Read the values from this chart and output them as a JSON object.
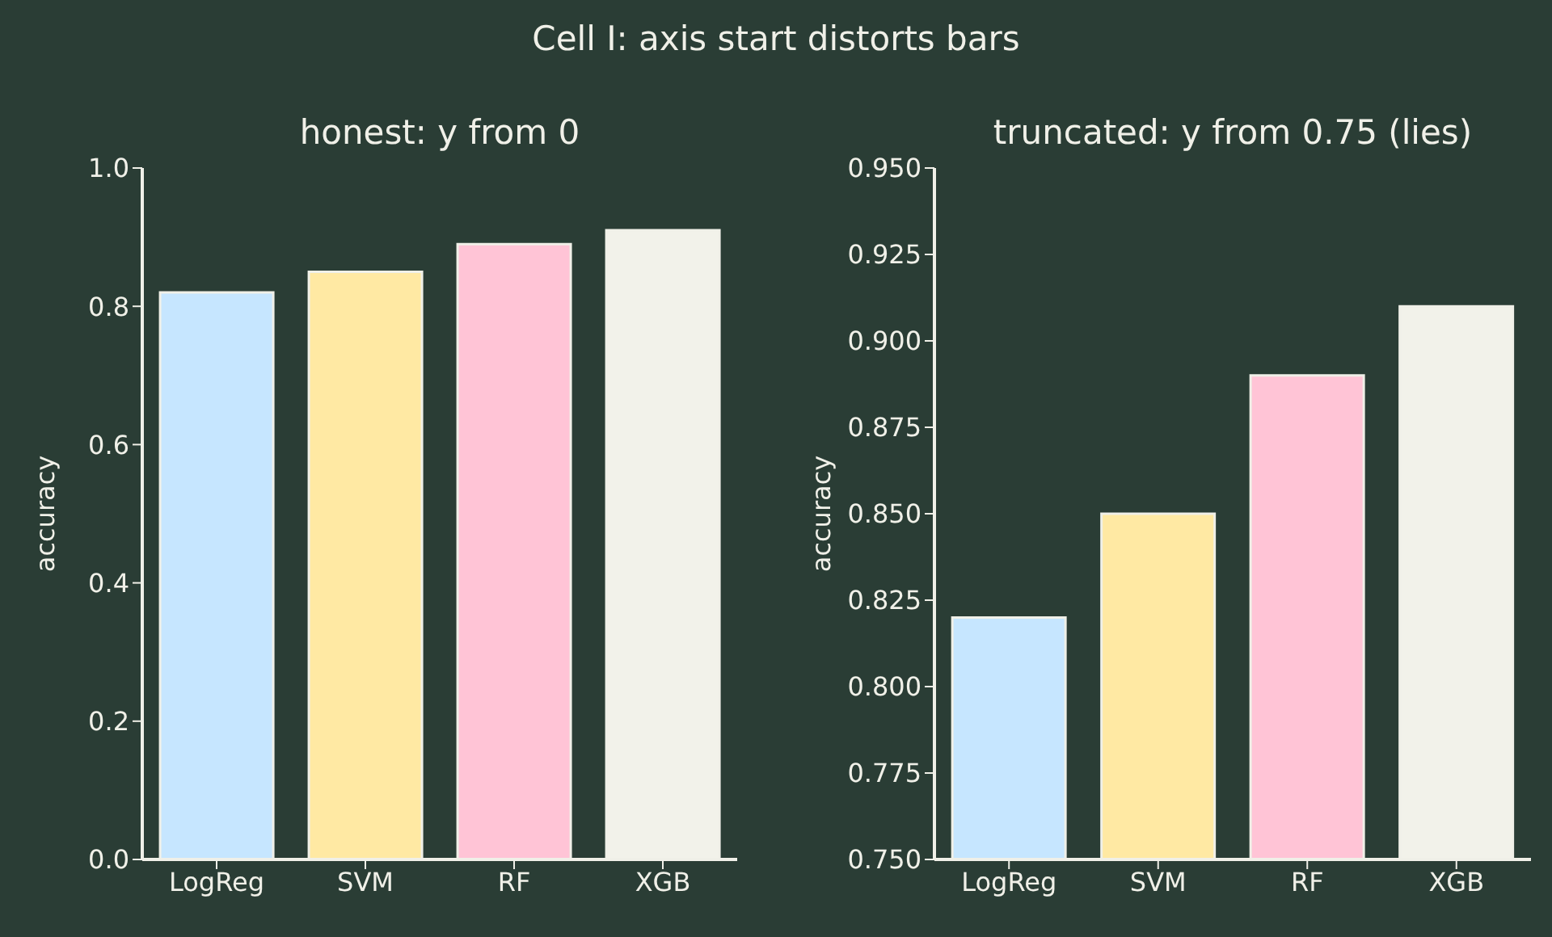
{
  "chart_data": [
    {
      "type": "bar",
      "title": "honest: y from 0",
      "ylabel": "accuracy",
      "annotations": [
        "Cell I: axis start distorts bars"
      ],
      "categories": [
        "LogReg",
        "SVM",
        "RF",
        "XGB"
      ],
      "values": [
        0.82,
        0.85,
        0.89,
        0.91
      ],
      "colors": [
        "#c6e6ff",
        "#ffe9a3",
        "#ffc4d6",
        "#f2f2ea"
      ],
      "ylim": [
        0,
        1
      ],
      "yticks": [
        {
          "value": 0,
          "label": "0.0"
        },
        0.2,
        0.4,
        0.6,
        0.8,
        {
          "value": 1,
          "label": "1.0"
        }
      ],
      "grid": false,
      "legend": false
    },
    {
      "type": "bar",
      "title": "truncated: y from 0.75 (lies)",
      "ylabel": "accuracy",
      "categories": [
        "LogReg",
        "SVM",
        "RF",
        "XGB"
      ],
      "values": [
        0.82,
        0.85,
        0.89,
        0.91
      ],
      "colors": [
        "#c6e6ff",
        "#ffe9a3",
        "#ffc4d6",
        "#f2f2ea"
      ],
      "ylim": [
        0.75,
        0.95
      ],
      "yticks": [
        {
          "value": 0.75,
          "label": "0.750"
        },
        0.775,
        {
          "value": 0.8,
          "label": "0.800"
        },
        0.825,
        {
          "value": 0.85,
          "label": "0.850"
        },
        0.875,
        {
          "value": 0.9,
          "label": "0.900"
        },
        0.925,
        {
          "value": 0.95,
          "label": "0.950"
        }
      ],
      "grid": false,
      "legend": false
    }
  ]
}
